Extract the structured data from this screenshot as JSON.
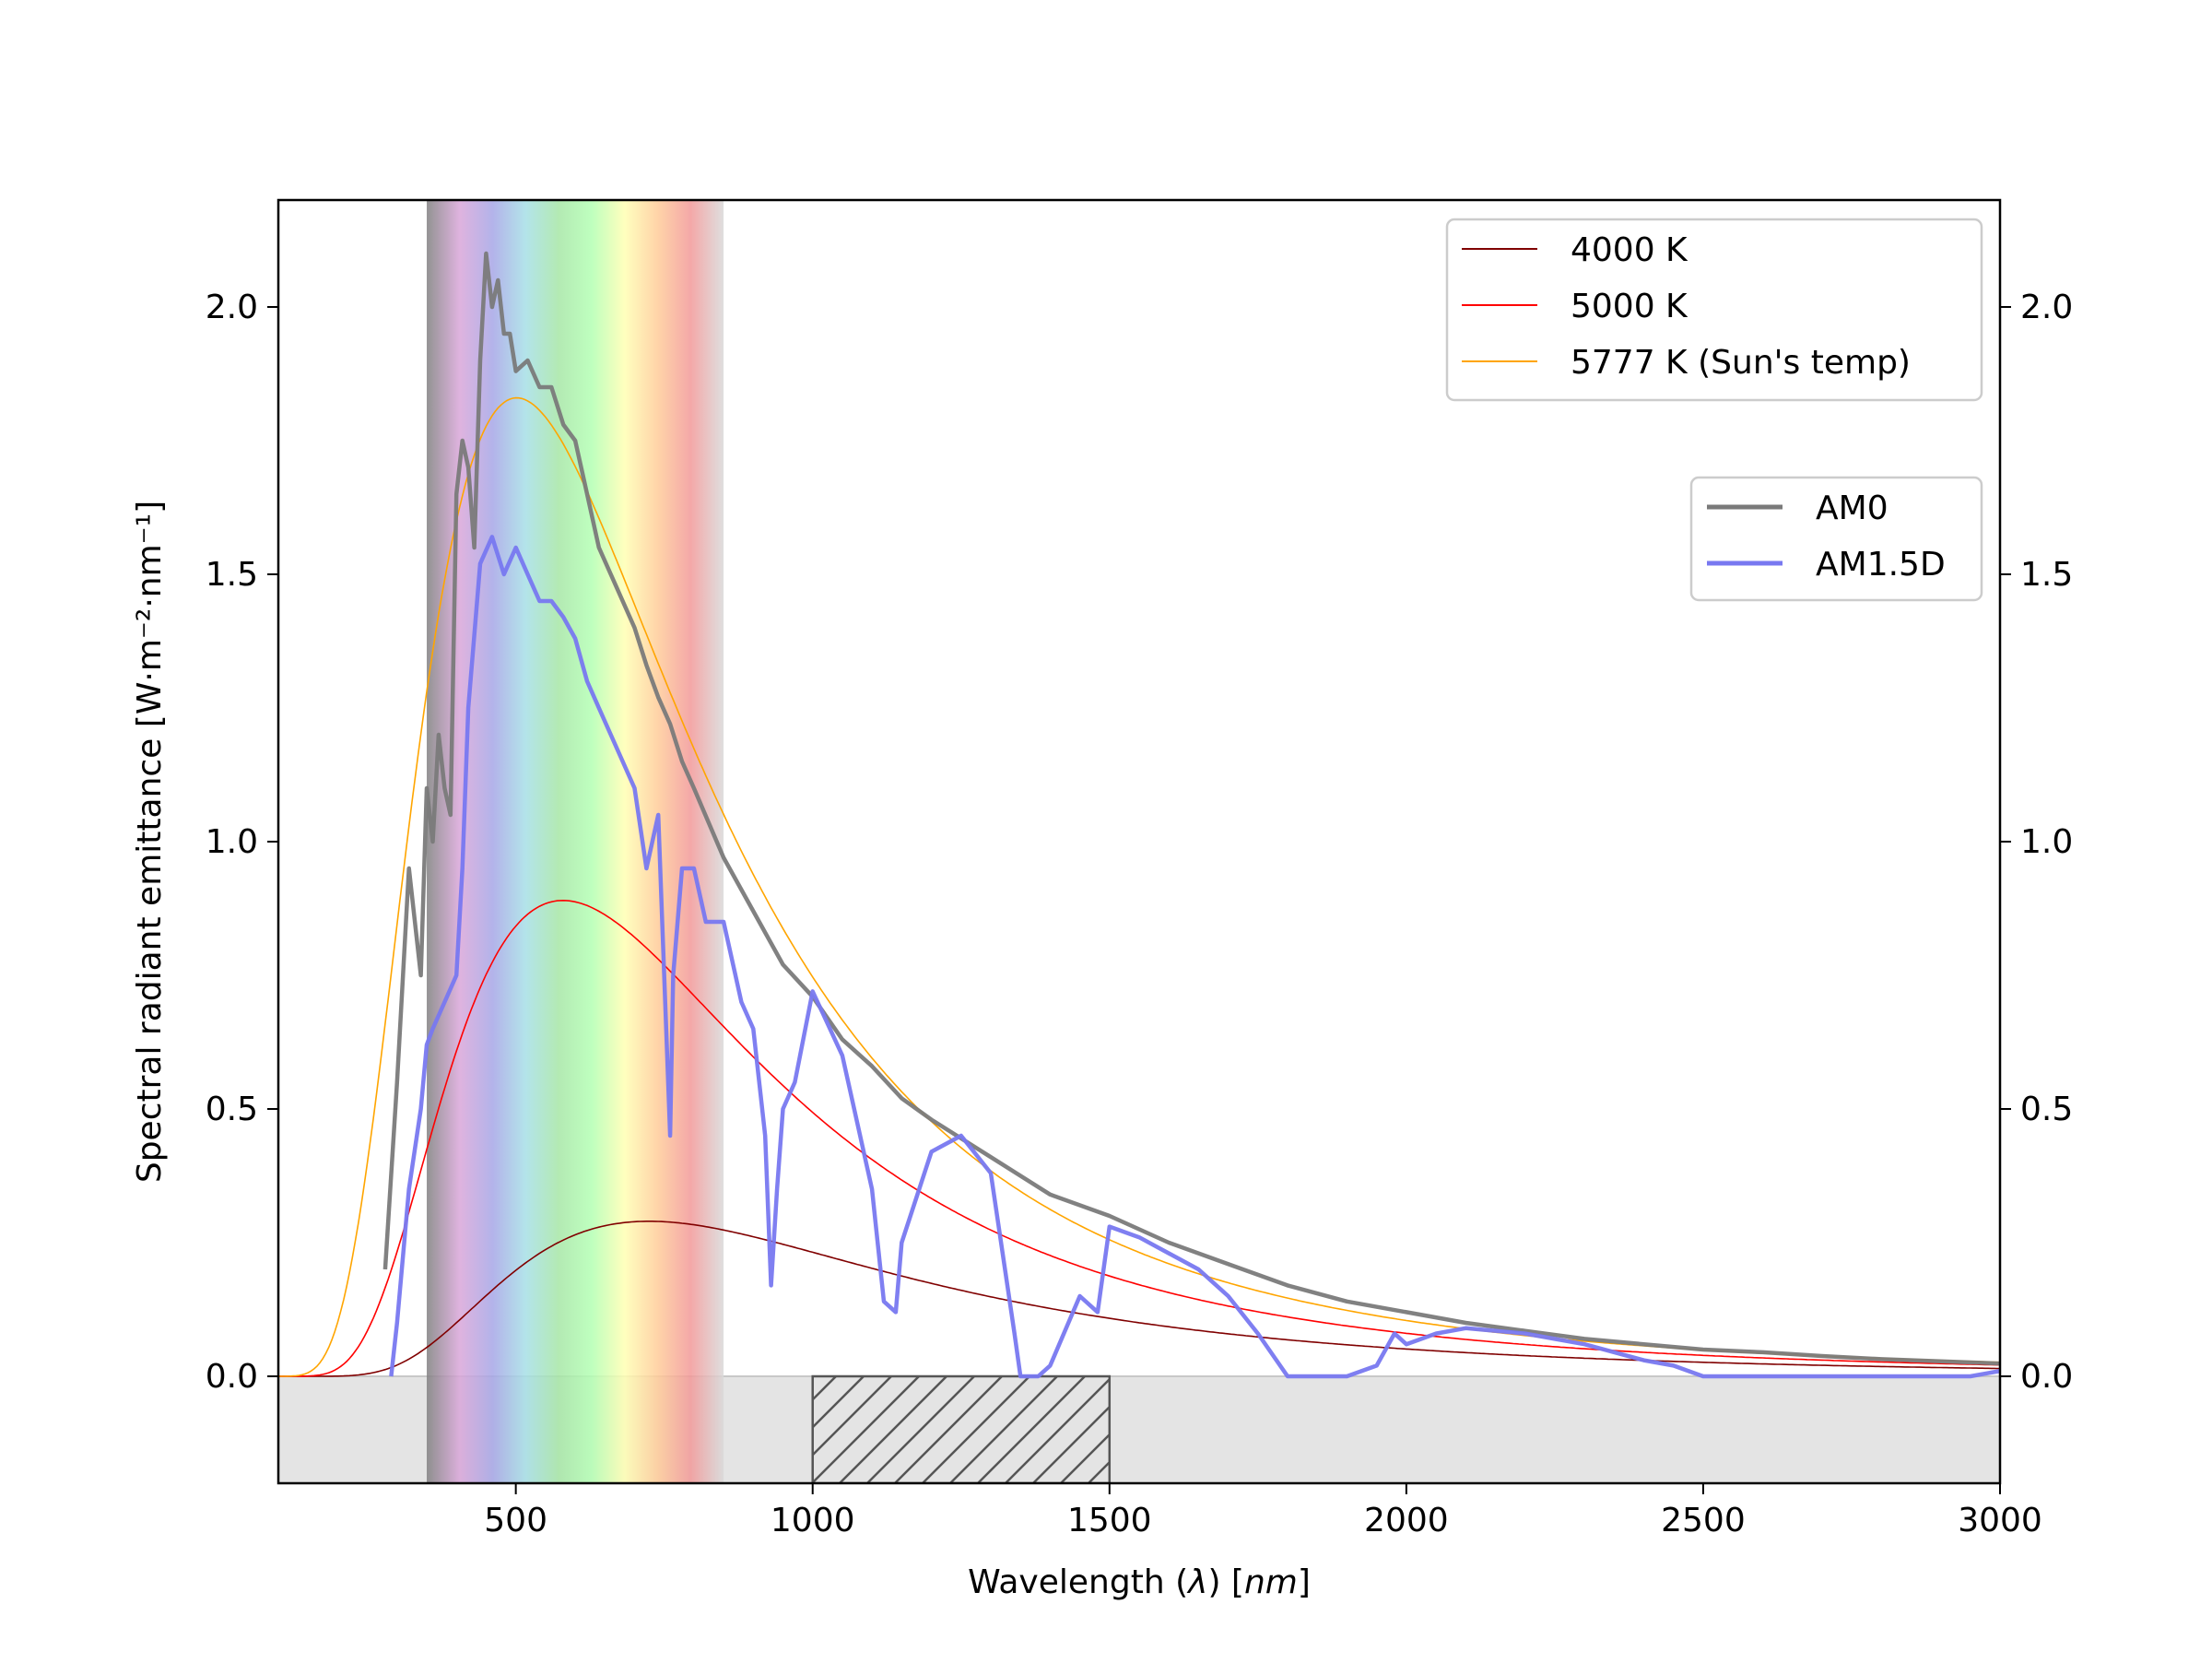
{
  "chart_data": {
    "type": "line",
    "title": "",
    "xlabel_prefix": "Wavelength (",
    "xlabel_symbol": "λ",
    "xlabel_mid": ") [",
    "xlabel_unit": "nm",
    "xlabel_suffix": "]",
    "ylabel": "Spectral radiant emittance [W·m⁻²·nm⁻¹]",
    "xlim": [
      100,
      3000
    ],
    "ylim": [
      -0.2,
      2.2
    ],
    "xticks": [
      500,
      1000,
      1500,
      2000,
      2500,
      3000
    ],
    "xtick_labels": [
      "500",
      "1000",
      "1500",
      "2000",
      "2500",
      "3000"
    ],
    "yticks": [
      0.0,
      0.5,
      1.0,
      1.5,
      2.0
    ],
    "ytick_labels": [
      "0.0",
      "0.5",
      "1.0",
      "1.5",
      "2.0"
    ],
    "right_yticks": true,
    "grid": false,
    "visible_band": [
      350,
      850
    ],
    "visible_band_colors": [
      "#808080",
      "#d9a6d9",
      "#a6a6e6",
      "#a6dfe6",
      "#a6e6a6",
      "#b3ffb3",
      "#ffffb3",
      "#ffcc99",
      "#f29999",
      "#d9d9d9"
    ],
    "negative_region_color": "#e4e4e4",
    "hatched_box": [
      1000,
      1500
    ],
    "blackbody_series": [
      {
        "name": "4000 K",
        "temperature": 4000,
        "color": "#800000",
        "peak": [
          725,
          0.29
        ]
      },
      {
        "name": "5000 K",
        "temperature": 5000,
        "color": "#ff0000",
        "peak": [
          580,
          0.89
        ]
      },
      {
        "name": "5777 K (Sun's temp)",
        "temperature": 5777,
        "color": "#ffa500",
        "peak": [
          502,
          1.83
        ]
      }
    ],
    "measured_series": [
      {
        "name": "AM0",
        "color": "#7a7a7a",
        "x": [
          280,
          300,
          320,
          340,
          350,
          360,
          370,
          380,
          390,
          400,
          410,
          420,
          430,
          440,
          450,
          460,
          470,
          480,
          490,
          500,
          520,
          540,
          560,
          580,
          600,
          620,
          640,
          660,
          680,
          700,
          720,
          740,
          760,
          780,
          800,
          850,
          900,
          950,
          1000,
          1050,
          1100,
          1150,
          1200,
          1300,
          1400,
          1500,
          1600,
          1700,
          1800,
          1900,
          2000,
          2100,
          2200,
          2300,
          2400,
          2500,
          2600,
          2700,
          2800,
          2900,
          3000
        ],
        "y": [
          0.2,
          0.55,
          0.95,
          0.75,
          1.1,
          1.0,
          1.2,
          1.1,
          1.05,
          1.65,
          1.75,
          1.7,
          1.55,
          1.9,
          2.1,
          2.0,
          2.05,
          1.95,
          1.95,
          1.88,
          1.9,
          1.85,
          1.85,
          1.78,
          1.75,
          1.65,
          1.55,
          1.5,
          1.45,
          1.4,
          1.33,
          1.27,
          1.22,
          1.15,
          1.1,
          0.97,
          0.87,
          0.77,
          0.71,
          0.63,
          0.58,
          0.52,
          0.48,
          0.41,
          0.34,
          0.3,
          0.25,
          0.21,
          0.17,
          0.14,
          0.12,
          0.1,
          0.085,
          0.07,
          0.06,
          0.05,
          0.045,
          0.038,
          0.032,
          0.028,
          0.024
        ]
      },
      {
        "name": "AM1.5D",
        "color": "#7878f0",
        "x": [
          290,
          300,
          320,
          340,
          350,
          360,
          380,
          400,
          410,
          420,
          440,
          460,
          480,
          500,
          520,
          540,
          560,
          580,
          600,
          620,
          640,
          660,
          680,
          700,
          720,
          740,
          760,
          765,
          780,
          800,
          820,
          850,
          880,
          900,
          920,
          930,
          940,
          950,
          970,
          1000,
          1050,
          1100,
          1120,
          1140,
          1150,
          1200,
          1250,
          1300,
          1340,
          1350,
          1380,
          1400,
          1450,
          1480,
          1500,
          1550,
          1600,
          1650,
          1700,
          1750,
          1800,
          1850,
          1900,
          1950,
          1980,
          2000,
          2050,
          2100,
          2200,
          2300,
          2400,
          2450,
          2500,
          2600,
          2800,
          2950,
          3000
        ],
        "y": [
          0.0,
          0.1,
          0.35,
          0.5,
          0.62,
          0.65,
          0.7,
          0.75,
          0.95,
          1.25,
          1.52,
          1.57,
          1.5,
          1.55,
          1.5,
          1.45,
          1.45,
          1.42,
          1.38,
          1.3,
          1.25,
          1.2,
          1.15,
          1.1,
          0.95,
          1.05,
          0.45,
          0.75,
          0.95,
          0.95,
          0.85,
          0.85,
          0.7,
          0.65,
          0.45,
          0.17,
          0.35,
          0.5,
          0.55,
          0.72,
          0.6,
          0.35,
          0.14,
          0.12,
          0.25,
          0.42,
          0.45,
          0.38,
          0.08,
          0.0,
          0.0,
          0.02,
          0.15,
          0.12,
          0.28,
          0.26,
          0.23,
          0.2,
          0.15,
          0.08,
          0.0,
          0.0,
          0.0,
          0.02,
          0.08,
          0.06,
          0.08,
          0.09,
          0.08,
          0.06,
          0.03,
          0.02,
          0.0,
          0.0,
          0.0,
          0.0,
          0.01
        ]
      }
    ],
    "legend1": {
      "placement": "upper-right",
      "entries": [
        "4000 K",
        "5000 K",
        "5777 K (Sun's temp)"
      ]
    },
    "legend2": {
      "placement": "upper-right",
      "entries": [
        "AM0",
        "AM1.5D"
      ]
    }
  }
}
